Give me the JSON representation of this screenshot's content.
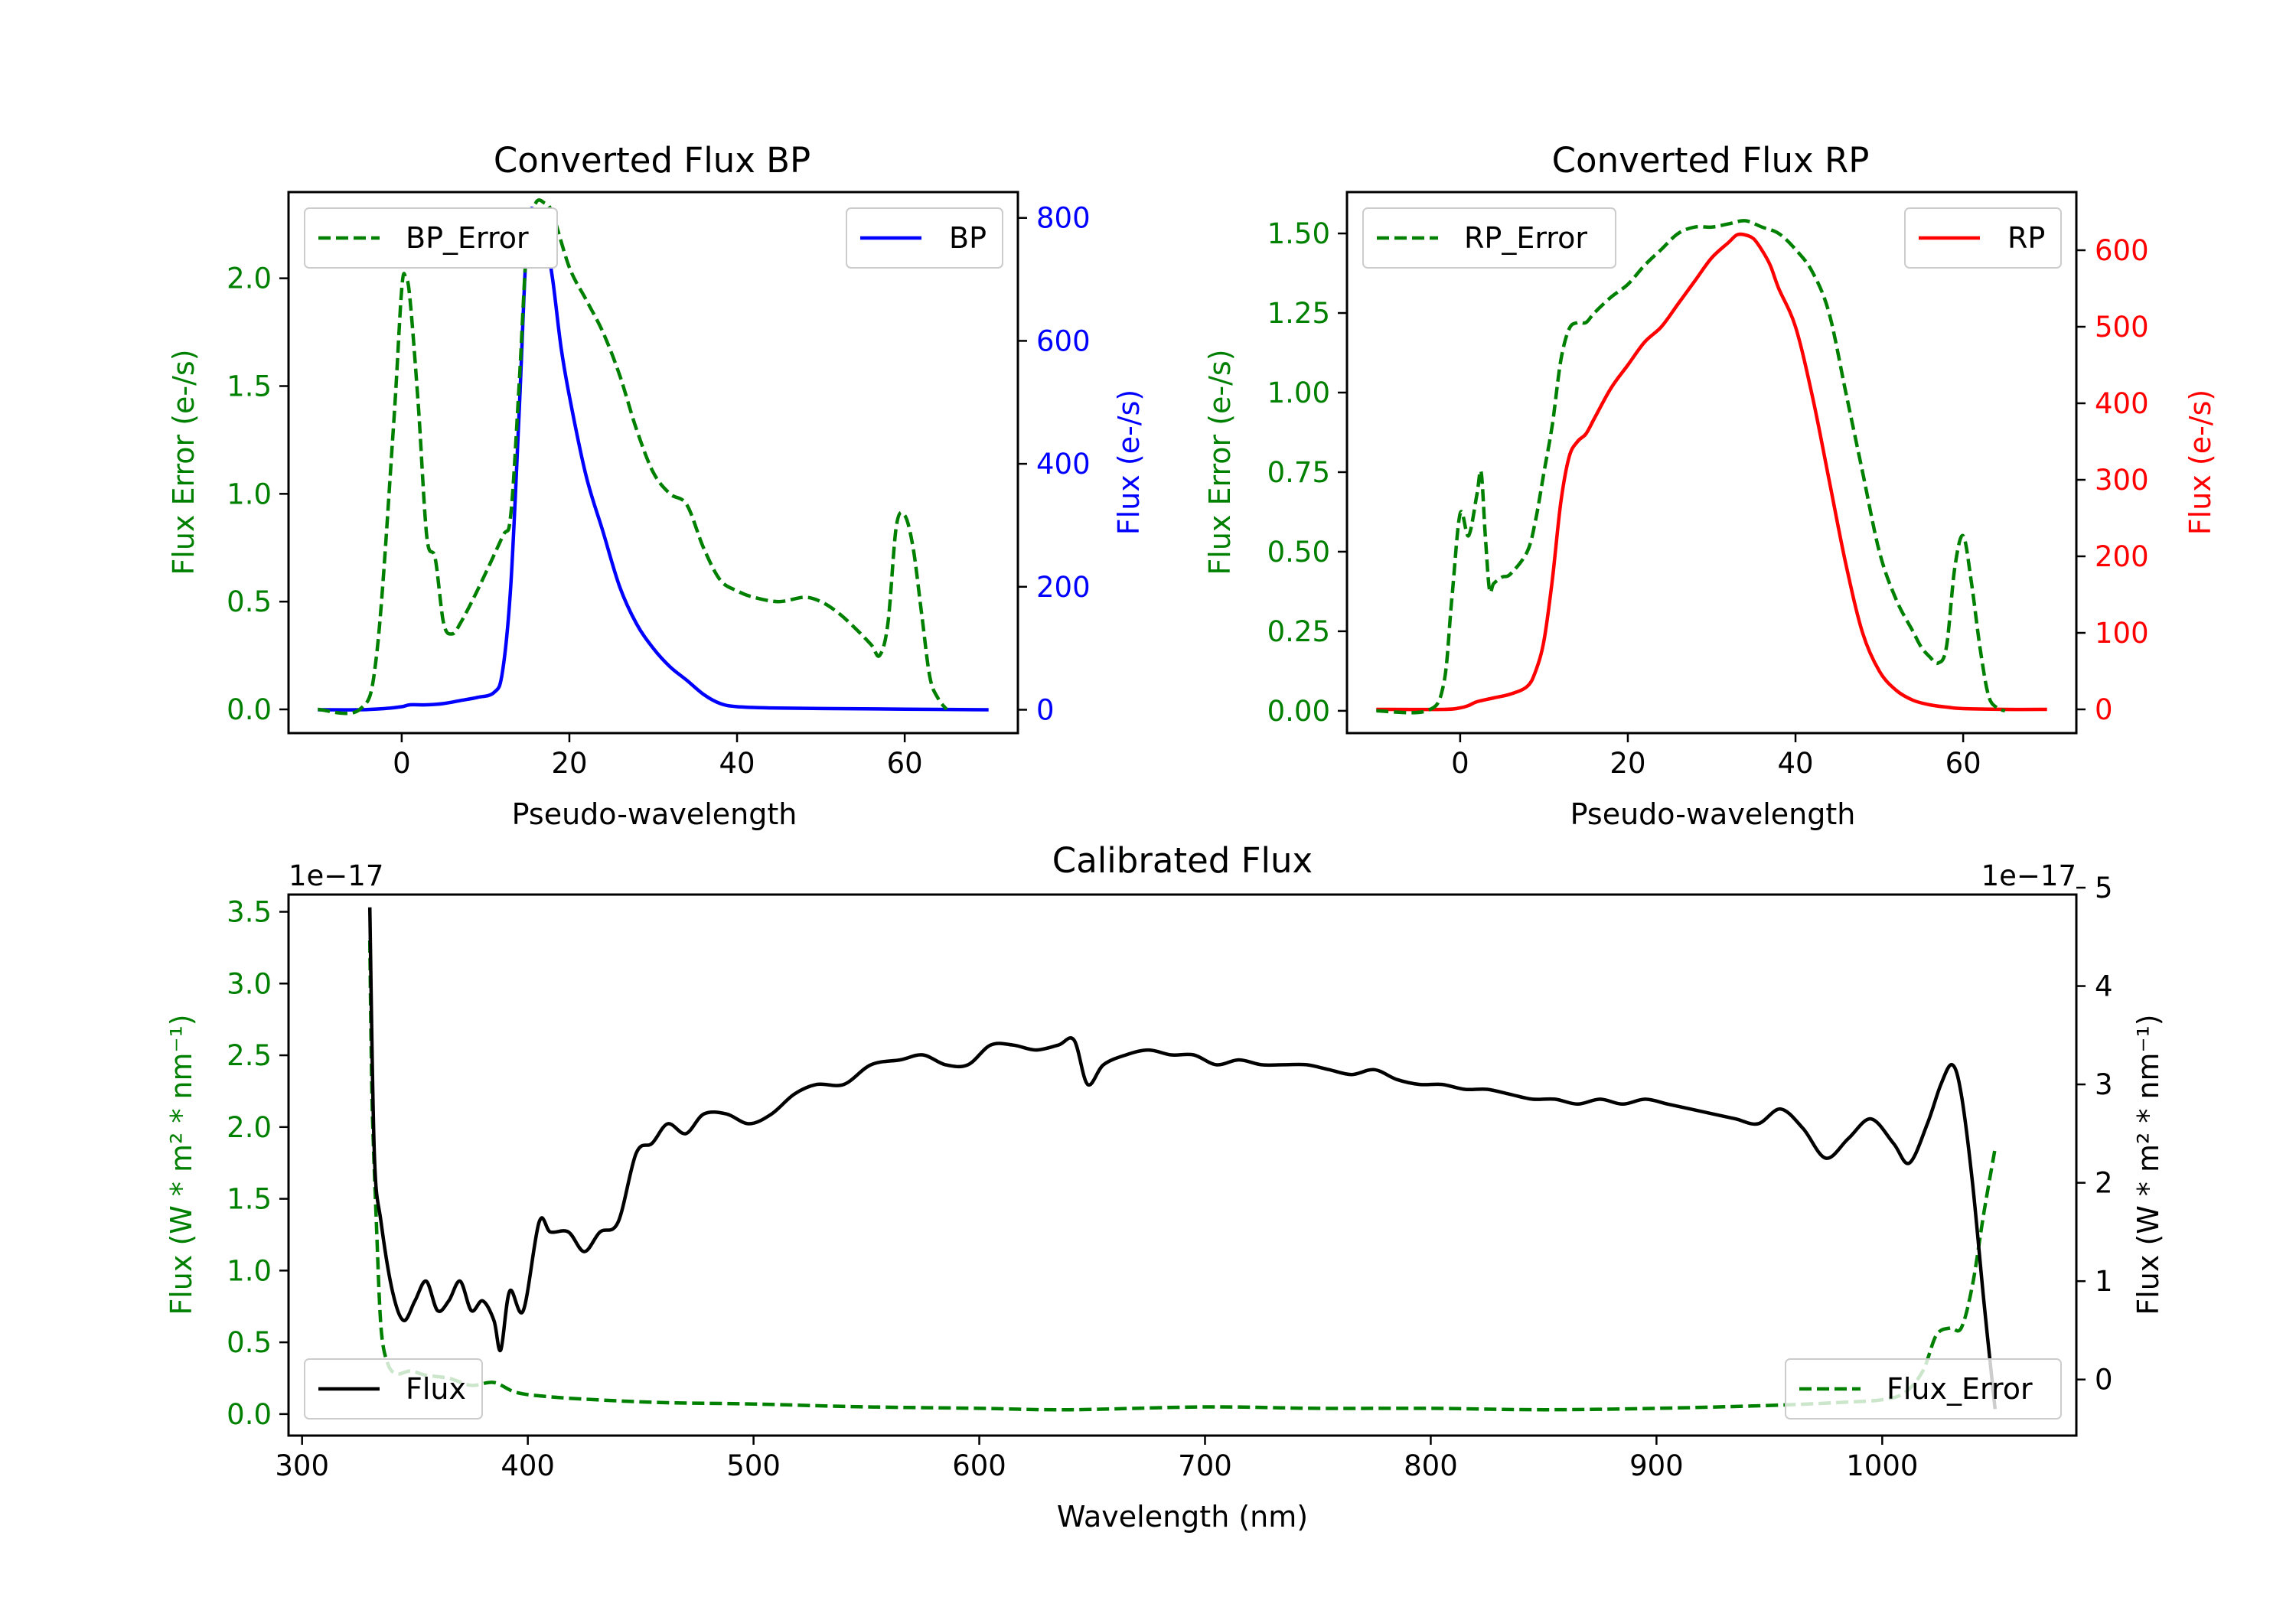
{
  "chart_data": [
    {
      "id": "bp",
      "type": "line",
      "title": "Converted Flux BP",
      "xlabel": "Pseudo-wavelength",
      "ylabel_left": "Flux Error (e-/s)",
      "ylabel_right": "Flux (e-/s)",
      "xlim": [
        -13.5,
        73.5
      ],
      "ylim_left": [
        -0.11,
        2.4
      ],
      "ylim_right": [
        -38,
        842
      ],
      "xticks": [
        0,
        20,
        40,
        60
      ],
      "yticks_left": [
        0.0,
        0.5,
        1.0,
        1.5,
        2.0
      ],
      "yticks_right": [
        0,
        200,
        400,
        600,
        800
      ],
      "legend_left": "BP_Error",
      "legend_right": "BP",
      "colors": {
        "left": "#008000",
        "right": "#0000ff"
      },
      "series": [
        {
          "name": "BP_Error",
          "axis": "left",
          "style": "dashed",
          "x": [
            -10,
            -5,
            -3,
            -1,
            0,
            0.5,
            1,
            2,
            3,
            4,
            5,
            6,
            7,
            9,
            12,
            13,
            14,
            15,
            16,
            17,
            18,
            20,
            22,
            24,
            26,
            28,
            30,
            32,
            34,
            36,
            38,
            40,
            42,
            45,
            48,
            50,
            52,
            54,
            56,
            57,
            58,
            59,
            60,
            61,
            62,
            63,
            64,
            65
          ],
          "values": [
            0.0,
            0.0,
            0.25,
            1.3,
            1.95,
            2.0,
            1.9,
            1.4,
            0.8,
            0.7,
            0.4,
            0.35,
            0.4,
            0.55,
            0.8,
            0.9,
            1.5,
            2.2,
            2.35,
            2.35,
            2.3,
            2.05,
            1.9,
            1.75,
            1.55,
            1.3,
            1.1,
            1.0,
            0.95,
            0.75,
            0.6,
            0.55,
            0.52,
            0.5,
            0.52,
            0.5,
            0.45,
            0.38,
            0.3,
            0.25,
            0.4,
            0.85,
            0.9,
            0.75,
            0.45,
            0.15,
            0.05,
            0.0
          ]
        },
        {
          "name": "BP",
          "axis": "right",
          "style": "solid",
          "x": [
            -10,
            -5,
            -2,
            0,
            1,
            3,
            5,
            7,
            9,
            11,
            12,
            13,
            14,
            15,
            16,
            17,
            18,
            19,
            20,
            22,
            24,
            26,
            28,
            30,
            32,
            34,
            36,
            38,
            40,
            44,
            50,
            60,
            70
          ],
          "values": [
            0,
            0,
            2,
            5,
            8,
            8,
            10,
            15,
            20,
            28,
            60,
            200,
            480,
            780,
            810,
            780,
            700,
            590,
            510,
            380,
            290,
            200,
            140,
            100,
            70,
            48,
            25,
            10,
            5,
            3,
            2,
            1,
            0
          ]
        }
      ]
    },
    {
      "id": "rp",
      "type": "line",
      "title": "Converted Flux RP",
      "xlabel": "Pseudo-wavelength",
      "ylabel_left": "Flux Error (e-/s)",
      "ylabel_right": "Flux (e-/s)",
      "xlim": [
        -13.5,
        73.5
      ],
      "ylim_left": [
        -0.07,
        1.63
      ],
      "ylim_right": [
        -31,
        676
      ],
      "xticks": [
        0,
        20,
        40,
        60
      ],
      "yticks_left": [
        0.0,
        0.25,
        0.5,
        0.75,
        1.0,
        1.25,
        1.5
      ],
      "yticks_right": [
        0,
        100,
        200,
        300,
        400,
        500,
        600
      ],
      "ytick_labels_left": [
        "0.00",
        "0.25",
        "0.50",
        "0.75",
        "1.00",
        "1.25",
        "1.50"
      ],
      "legend_left": "RP_Error",
      "legend_right": "RP",
      "colors": {
        "left": "#008000",
        "right": "#ff0000"
      },
      "series": [
        {
          "name": "RP_Error",
          "axis": "left",
          "style": "dashed",
          "x": [
            -10,
            -4,
            -2,
            -1,
            0,
            1,
            2,
            2.5,
            3,
            3.5,
            4,
            5,
            6,
            8,
            9,
            10,
            11,
            12,
            13,
            14,
            15,
            16,
            18,
            20,
            22,
            24,
            26,
            28,
            30,
            32,
            34,
            36,
            38,
            40,
            42,
            44,
            46,
            48,
            50,
            52,
            54,
            55,
            56,
            57,
            58,
            59,
            60,
            61,
            62,
            63,
            64,
            65
          ],
          "values": [
            0.0,
            0.0,
            0.08,
            0.35,
            0.62,
            0.55,
            0.68,
            0.75,
            0.55,
            0.38,
            0.4,
            0.42,
            0.43,
            0.5,
            0.6,
            0.75,
            0.9,
            1.1,
            1.2,
            1.22,
            1.22,
            1.25,
            1.3,
            1.34,
            1.4,
            1.45,
            1.5,
            1.52,
            1.52,
            1.53,
            1.54,
            1.52,
            1.5,
            1.45,
            1.38,
            1.25,
            1.0,
            0.75,
            0.5,
            0.35,
            0.25,
            0.2,
            0.17,
            0.15,
            0.2,
            0.45,
            0.55,
            0.4,
            0.2,
            0.05,
            0.01,
            0.0
          ]
        },
        {
          "name": "RP",
          "axis": "right",
          "style": "solid",
          "x": [
            -10,
            -2,
            0,
            1,
            2,
            4,
            6,
            8,
            9,
            10,
            11,
            12,
            13,
            14,
            15,
            16,
            18,
            20,
            22,
            24,
            26,
            28,
            30,
            32,
            33,
            34,
            35,
            36,
            37,
            38,
            40,
            42,
            44,
            46,
            48,
            50,
            52,
            54,
            56,
            58,
            60,
            65,
            70
          ],
          "values": [
            0,
            0,
            2,
            5,
            10,
            15,
            20,
            30,
            50,
            90,
            170,
            270,
            330,
            350,
            360,
            380,
            420,
            450,
            480,
            500,
            530,
            560,
            590,
            610,
            620,
            620,
            615,
            600,
            580,
            550,
            500,
            410,
            300,
            190,
            100,
            50,
            25,
            12,
            6,
            3,
            1,
            0,
            0
          ]
        }
      ]
    },
    {
      "id": "calibrated",
      "type": "line",
      "title": "Calibrated Flux",
      "xlabel": "Wavelength (nm)",
      "ylabel_left": "Flux (W * m² * nm⁻¹)",
      "ylabel_right": "Flux (W * m² * nm⁻¹)",
      "exponent_left": "1e−17",
      "exponent_right": "1e−17",
      "xlim": [
        294,
        1086
      ],
      "ylim_left": [
        -0.15,
        3.62
      ],
      "ylim_right": [
        -0.57,
        4.93
      ],
      "xticks": [
        300,
        400,
        500,
        600,
        700,
        800,
        900,
        1000
      ],
      "yticks_left": [
        0.0,
        0.5,
        1.0,
        1.5,
        2.0,
        2.5,
        3.0,
        3.5
      ],
      "yticks_right": [
        0,
        1,
        2,
        3,
        4,
        5
      ],
      "legend_left": "Flux",
      "legend_right": "Flux_Error",
      "colors": {
        "left": "#008000",
        "right": "#000000"
      },
      "series": [
        {
          "name": "Flux",
          "axis": "right",
          "style": "solid",
          "color": "#000000",
          "x": [
            330,
            332,
            335,
            340,
            345,
            350,
            355,
            360,
            365,
            370,
            375,
            380,
            385,
            388,
            392,
            398,
            405,
            410,
            418,
            425,
            432,
            440,
            448,
            455,
            462,
            470,
            478,
            488,
            498,
            508,
            518,
            528,
            540,
            552,
            565,
            575,
            585,
            595,
            605,
            615,
            625,
            635,
            642,
            648,
            655,
            665,
            675,
            685,
            695,
            705,
            715,
            725,
            735,
            745,
            755,
            765,
            775,
            785,
            795,
            805,
            815,
            825,
            835,
            845,
            855,
            865,
            875,
            885,
            895,
            905,
            915,
            925,
            935,
            945,
            955,
            965,
            975,
            985,
            995,
            1005,
            1012,
            1020,
            1026,
            1031,
            1035,
            1040,
            1045,
            1050
          ],
          "values": [
            4.8,
            2.3,
            1.6,
            0.9,
            0.6,
            0.8,
            1.0,
            0.7,
            0.8,
            1.0,
            0.7,
            0.8,
            0.6,
            0.3,
            0.9,
            0.7,
            1.6,
            1.5,
            1.5,
            1.3,
            1.5,
            1.6,
            2.3,
            2.4,
            2.6,
            2.5,
            2.7,
            2.7,
            2.6,
            2.7,
            2.9,
            3.0,
            3.0,
            3.2,
            3.25,
            3.3,
            3.2,
            3.2,
            3.4,
            3.4,
            3.35,
            3.4,
            3.45,
            3.0,
            3.2,
            3.3,
            3.35,
            3.3,
            3.3,
            3.2,
            3.25,
            3.2,
            3.2,
            3.2,
            3.15,
            3.1,
            3.15,
            3.05,
            3.0,
            3.0,
            2.95,
            2.95,
            2.9,
            2.85,
            2.85,
            2.8,
            2.85,
            2.8,
            2.85,
            2.8,
            2.75,
            2.7,
            2.65,
            2.6,
            2.75,
            2.55,
            2.25,
            2.45,
            2.65,
            2.4,
            2.2,
            2.6,
            3.0,
            3.2,
            2.9,
            2.0,
            0.8,
            -0.3
          ]
        },
        {
          "name": "Flux_Error",
          "axis": "left",
          "style": "dashed",
          "color": "#008000",
          "x": [
            330,
            331,
            333,
            335,
            338,
            342,
            348,
            355,
            365,
            375,
            385,
            395,
            410,
            430,
            460,
            500,
            550,
            600,
            640,
            700,
            750,
            800,
            850,
            900,
            950,
            980,
            1000,
            1010,
            1018,
            1024,
            1030,
            1035,
            1040,
            1045,
            1050
          ],
          "values": [
            3.3,
            2.2,
            1.3,
            0.6,
            0.35,
            0.28,
            0.3,
            0.27,
            0.25,
            0.2,
            0.22,
            0.15,
            0.12,
            0.1,
            0.08,
            0.07,
            0.05,
            0.04,
            0.03,
            0.05,
            0.04,
            0.04,
            0.03,
            0.04,
            0.06,
            0.08,
            0.1,
            0.15,
            0.3,
            0.55,
            0.6,
            0.6,
            0.9,
            1.4,
            1.85
          ]
        }
      ]
    }
  ]
}
